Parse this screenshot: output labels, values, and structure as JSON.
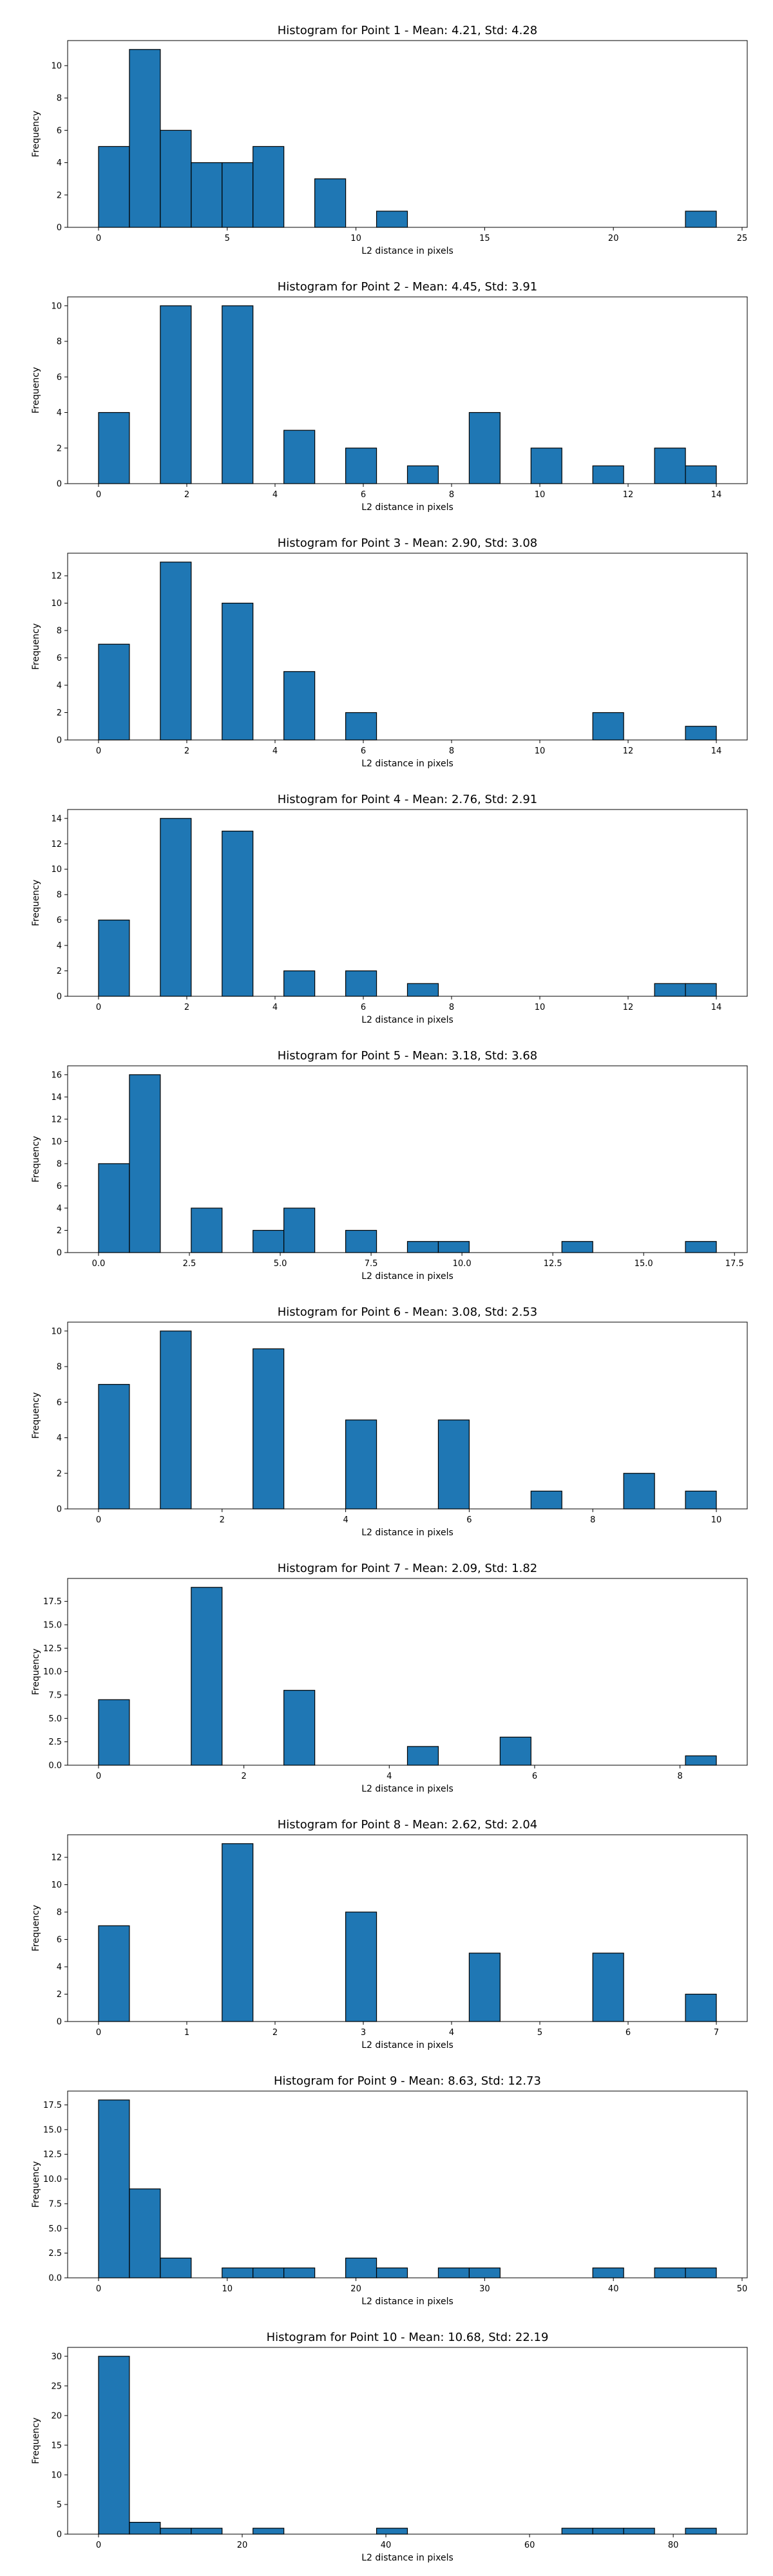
{
  "figure": {
    "background": "#ffffff"
  },
  "style": {
    "bar_color": "#1f77b4",
    "edge_color": "#000000"
  },
  "chart_data": [
    {
      "type": "bar",
      "title": "Histogram for Point 1 - Mean: 4.21, Std: 4.28",
      "xlabel": "L2 distance in pixels",
      "ylabel": "Frequency",
      "xlim": [
        -1.2,
        25.2
      ],
      "ylim": [
        0,
        11.55
      ],
      "xticks": [
        0,
        5,
        10,
        15,
        20,
        25
      ],
      "xtick_labels": [
        "0",
        "5",
        "10",
        "15",
        "20",
        "25"
      ],
      "yticks": [
        0,
        2,
        4,
        6,
        8,
        10
      ],
      "ytick_labels": [
        "0",
        "2",
        "4",
        "6",
        "8",
        "10"
      ],
      "bin_width": 1.2,
      "bins": [
        [
          0,
          5
        ],
        [
          1.2,
          11
        ],
        [
          2.4,
          6
        ],
        [
          3.6,
          4
        ],
        [
          4.8,
          4
        ],
        [
          6.0,
          5
        ],
        [
          8.4,
          3
        ],
        [
          10.8,
          1
        ],
        [
          22.8,
          1
        ]
      ]
    },
    {
      "type": "bar",
      "title": "Histogram for Point 2 - Mean: 4.45, Std: 3.91",
      "xlabel": "L2 distance in pixels",
      "ylabel": "Frequency",
      "xlim": [
        -0.7,
        14.7
      ],
      "ylim": [
        0,
        10.5
      ],
      "xticks": [
        0,
        2,
        4,
        6,
        8,
        10,
        12,
        14
      ],
      "xtick_labels": [
        "0",
        "2",
        "4",
        "6",
        "8",
        "10",
        "12",
        "14"
      ],
      "yticks": [
        0,
        2,
        4,
        6,
        8,
        10
      ],
      "ytick_labels": [
        "0",
        "2",
        "4",
        "6",
        "8",
        "10"
      ],
      "bin_width": 0.7,
      "bins": [
        [
          0,
          4
        ],
        [
          1.4,
          10
        ],
        [
          2.8,
          10
        ],
        [
          4.2,
          3
        ],
        [
          5.6,
          2
        ],
        [
          7.0,
          1
        ],
        [
          8.4,
          4
        ],
        [
          9.8,
          2
        ],
        [
          11.2,
          1
        ],
        [
          12.6,
          2
        ],
        [
          13.3,
          1
        ]
      ]
    },
    {
      "type": "bar",
      "title": "Histogram for Point 3 - Mean: 2.90, Std: 3.08",
      "xlabel": "L2 distance in pixels",
      "ylabel": "Frequency",
      "xlim": [
        -0.7,
        14.7
      ],
      "ylim": [
        0,
        13.65
      ],
      "xticks": [
        0,
        2,
        4,
        6,
        8,
        10,
        12,
        14
      ],
      "xtick_labels": [
        "0",
        "2",
        "4",
        "6",
        "8",
        "10",
        "12",
        "14"
      ],
      "yticks": [
        0,
        2,
        4,
        6,
        8,
        10,
        12
      ],
      "ytick_labels": [
        "0",
        "2",
        "4",
        "6",
        "8",
        "10",
        "12"
      ],
      "bin_width": 0.7,
      "bins": [
        [
          0,
          7
        ],
        [
          1.4,
          13
        ],
        [
          2.8,
          10
        ],
        [
          4.2,
          5
        ],
        [
          5.6,
          2
        ],
        [
          11.2,
          2
        ],
        [
          13.3,
          1
        ]
      ]
    },
    {
      "type": "bar",
      "title": "Histogram for Point 4 - Mean: 2.76, Std: 2.91",
      "xlabel": "L2 distance in pixels",
      "ylabel": "Frequency",
      "xlim": [
        -0.7,
        14.7
      ],
      "ylim": [
        0,
        14.7
      ],
      "xticks": [
        0,
        2,
        4,
        6,
        8,
        10,
        12,
        14
      ],
      "xtick_labels": [
        "0",
        "2",
        "4",
        "6",
        "8",
        "10",
        "12",
        "14"
      ],
      "yticks": [
        0,
        2,
        4,
        6,
        8,
        10,
        12,
        14
      ],
      "ytick_labels": [
        "0",
        "2",
        "4",
        "6",
        "8",
        "10",
        "12",
        "14"
      ],
      "bin_width": 0.7,
      "bins": [
        [
          0,
          6
        ],
        [
          1.4,
          14
        ],
        [
          2.8,
          13
        ],
        [
          4.2,
          2
        ],
        [
          5.6,
          2
        ],
        [
          7.0,
          1
        ],
        [
          12.6,
          1
        ],
        [
          13.3,
          1
        ]
      ]
    },
    {
      "type": "bar",
      "title": "Histogram for Point 5 - Mean: 3.18, Std: 3.68",
      "xlabel": "L2 distance in pixels",
      "ylabel": "Frequency",
      "xlim": [
        -0.85,
        17.85
      ],
      "ylim": [
        0,
        16.8
      ],
      "xticks": [
        0,
        2.5,
        5,
        7.5,
        10,
        12.5,
        15,
        17.5
      ],
      "xtick_labels": [
        "0.0",
        "2.5",
        "5.0",
        "7.5",
        "10.0",
        "12.5",
        "15.0",
        "17.5"
      ],
      "yticks": [
        0,
        2,
        4,
        6,
        8,
        10,
        12,
        14,
        16
      ],
      "ytick_labels": [
        "0",
        "2",
        "4",
        "6",
        "8",
        "10",
        "12",
        "14",
        "16"
      ],
      "bin_width": 0.85,
      "bins": [
        [
          0,
          8
        ],
        [
          0.85,
          16
        ],
        [
          2.55,
          4
        ],
        [
          4.25,
          2
        ],
        [
          5.1,
          4
        ],
        [
          6.8,
          2
        ],
        [
          8.5,
          1
        ],
        [
          9.35,
          1
        ],
        [
          12.75,
          1
        ],
        [
          16.15,
          1
        ]
      ]
    },
    {
      "type": "bar",
      "title": "Histogram for Point 6 - Mean: 3.08, Std: 2.53",
      "xlabel": "L2 distance in pixels",
      "ylabel": "Frequency",
      "xlim": [
        -0.5,
        10.5
      ],
      "ylim": [
        0,
        10.5
      ],
      "xticks": [
        0,
        2,
        4,
        6,
        8,
        10
      ],
      "xtick_labels": [
        "0",
        "2",
        "4",
        "6",
        "8",
        "10"
      ],
      "yticks": [
        0,
        2,
        4,
        6,
        8,
        10
      ],
      "ytick_labels": [
        "0",
        "2",
        "4",
        "6",
        "8",
        "10"
      ],
      "bin_width": 0.5,
      "bins": [
        [
          0,
          7
        ],
        [
          1.0,
          10
        ],
        [
          2.5,
          9
        ],
        [
          4.0,
          5
        ],
        [
          5.5,
          5
        ],
        [
          7.0,
          1
        ],
        [
          8.5,
          2
        ],
        [
          9.5,
          1
        ]
      ]
    },
    {
      "type": "bar",
      "title": "Histogram for Point 7 - Mean: 2.09, Std: 1.82",
      "xlabel": "L2 distance in pixels",
      "ylabel": "Frequency",
      "xlim": [
        -0.425,
        8.925
      ],
      "ylim": [
        0,
        19.95
      ],
      "xticks": [
        0,
        2,
        4,
        6,
        8
      ],
      "xtick_labels": [
        "0",
        "2",
        "4",
        "6",
        "8"
      ],
      "yticks": [
        0,
        2.5,
        5,
        7.5,
        10,
        12.5,
        15,
        17.5
      ],
      "ytick_labels": [
        "0.0",
        "2.5",
        "5.0",
        "7.5",
        "10.0",
        "12.5",
        "15.0",
        "17.5"
      ],
      "bin_width": 0.425,
      "bins": [
        [
          0,
          7
        ],
        [
          1.275,
          19
        ],
        [
          2.55,
          8
        ],
        [
          4.25,
          2
        ],
        [
          5.525,
          3
        ],
        [
          8.075,
          1
        ]
      ]
    },
    {
      "type": "bar",
      "title": "Histogram for Point 8 - Mean: 2.62, Std: 2.04",
      "xlabel": "L2 distance in pixels",
      "ylabel": "Frequency",
      "xlim": [
        -0.35,
        7.35
      ],
      "ylim": [
        0,
        13.65
      ],
      "xticks": [
        0,
        1,
        2,
        3,
        4,
        5,
        6,
        7
      ],
      "xtick_labels": [
        "0",
        "1",
        "2",
        "3",
        "4",
        "5",
        "6",
        "7"
      ],
      "yticks": [
        0,
        2,
        4,
        6,
        8,
        10,
        12
      ],
      "ytick_labels": [
        "0",
        "2",
        "4",
        "6",
        "8",
        "10",
        "12"
      ],
      "bin_width": 0.35,
      "bins": [
        [
          0,
          7
        ],
        [
          1.4,
          13
        ],
        [
          2.8,
          8
        ],
        [
          4.2,
          5
        ],
        [
          5.6,
          5
        ],
        [
          6.65,
          2
        ]
      ]
    },
    {
      "type": "bar",
      "title": "Histogram for Point 9 - Mean: 8.63, Std: 12.73",
      "xlabel": "L2 distance in pixels",
      "ylabel": "Frequency",
      "xlim": [
        -2.4,
        50.4
      ],
      "ylim": [
        0,
        18.9
      ],
      "xticks": [
        0,
        10,
        20,
        30,
        40,
        50
      ],
      "xtick_labels": [
        "0",
        "10",
        "20",
        "30",
        "40",
        "50"
      ],
      "yticks": [
        0,
        2.5,
        5,
        7.5,
        10,
        12.5,
        15,
        17.5
      ],
      "ytick_labels": [
        "0.0",
        "2.5",
        "5.0",
        "7.5",
        "10.0",
        "12.5",
        "15.0",
        "17.5"
      ],
      "bin_width": 2.4,
      "bins": [
        [
          0,
          18
        ],
        [
          2.4,
          9
        ],
        [
          4.8,
          2
        ],
        [
          9.6,
          1
        ],
        [
          12.0,
          1
        ],
        [
          14.4,
          1
        ],
        [
          19.2,
          2
        ],
        [
          21.6,
          1
        ],
        [
          26.4,
          1
        ],
        [
          28.8,
          1
        ],
        [
          38.4,
          1
        ],
        [
          43.2,
          1
        ],
        [
          45.6,
          1
        ]
      ]
    },
    {
      "type": "bar",
      "title": "Histogram for Point 10 - Mean: 10.68, Std: 22.19",
      "xlabel": "L2 distance in pixels",
      "ylabel": "Frequency",
      "xlim": [
        -4.3,
        90.3
      ],
      "ylim": [
        0,
        31.5
      ],
      "xticks": [
        0,
        20,
        40,
        60,
        80
      ],
      "xtick_labels": [
        "0",
        "20",
        "40",
        "60",
        "80"
      ],
      "yticks": [
        0,
        5,
        10,
        15,
        20,
        25,
        30
      ],
      "ytick_labels": [
        "0",
        "5",
        "10",
        "15",
        "20",
        "25",
        "30"
      ],
      "bin_width": 4.3,
      "bins": [
        [
          0,
          30
        ],
        [
          4.3,
          2
        ],
        [
          8.6,
          1
        ],
        [
          12.9,
          1
        ],
        [
          21.5,
          1
        ],
        [
          38.7,
          1
        ],
        [
          64.5,
          1
        ],
        [
          68.8,
          1
        ],
        [
          73.1,
          1
        ],
        [
          81.7,
          1
        ]
      ]
    }
  ]
}
